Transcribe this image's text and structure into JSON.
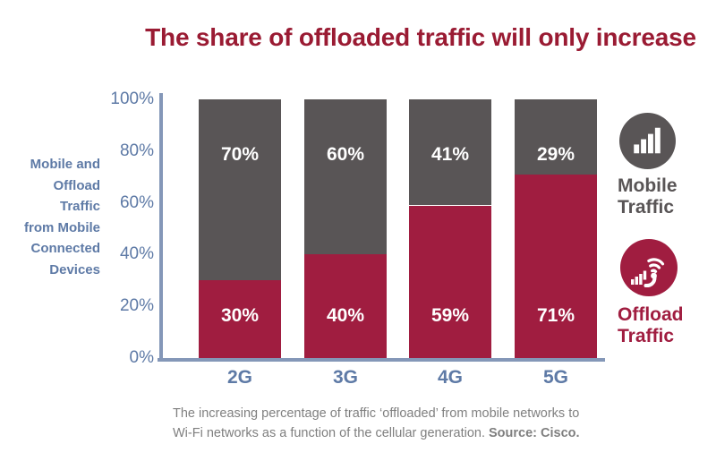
{
  "title": "The share of offloaded traffic will only increase",
  "colors": {
    "title_red": "#9a1b33",
    "mobile_gray": "#595556",
    "offload_red": "#a01d40",
    "axis_text_blue": "#5e7aa6",
    "axis_line_blue": "#8497b8",
    "caption_gray": "#7f7f7f",
    "bar_label_white": "#ffffff"
  },
  "chart_data": {
    "type": "bar",
    "stacked": true,
    "percent_stacked": true,
    "categories": [
      "2G",
      "3G",
      "4G",
      "5G"
    ],
    "series": [
      {
        "name": "Offload Traffic",
        "color": "#a01d40",
        "position": "bottom",
        "values": [
          30,
          40,
          59,
          71
        ]
      },
      {
        "name": "Mobile Traffic",
        "color": "#595556",
        "position": "top",
        "values": [
          70,
          60,
          41,
          29
        ]
      }
    ],
    "value_labels": {
      "mobile": [
        "70%",
        "60%",
        "41%",
        "29%"
      ],
      "offload": [
        "30%",
        "40%",
        "59%",
        "71%"
      ]
    },
    "title": "The share of offloaded traffic will only increase",
    "xlabel": "",
    "ylabel": "Mobile and Offload Traffic from Mobile Connected Devices",
    "yticks": [
      "100%",
      "80%",
      "60%",
      "40%",
      "20%",
      "0%"
    ],
    "ylim": [
      0,
      100
    ],
    "grid": false,
    "legend_position": "right"
  },
  "y_axis_label_multiline": "Mobile and\nOffload\nTraffic\nfrom Mobile\nConnected\nDevices",
  "legend": {
    "mobile": {
      "label": "Mobile\nTraffic",
      "icon": "signal-bars-icon",
      "color": "#595556"
    },
    "offload": {
      "label": "Offload\nTraffic",
      "icon": "wifi-offload-icon",
      "color": "#a01d40"
    }
  },
  "caption": {
    "line1": "The increasing percentage of traffic ‘offloaded’ from mobile networks to",
    "line2_text": "Wi-Fi networks as a function of the cellular generation. ",
    "line2_source": "Source: Cisco."
  }
}
